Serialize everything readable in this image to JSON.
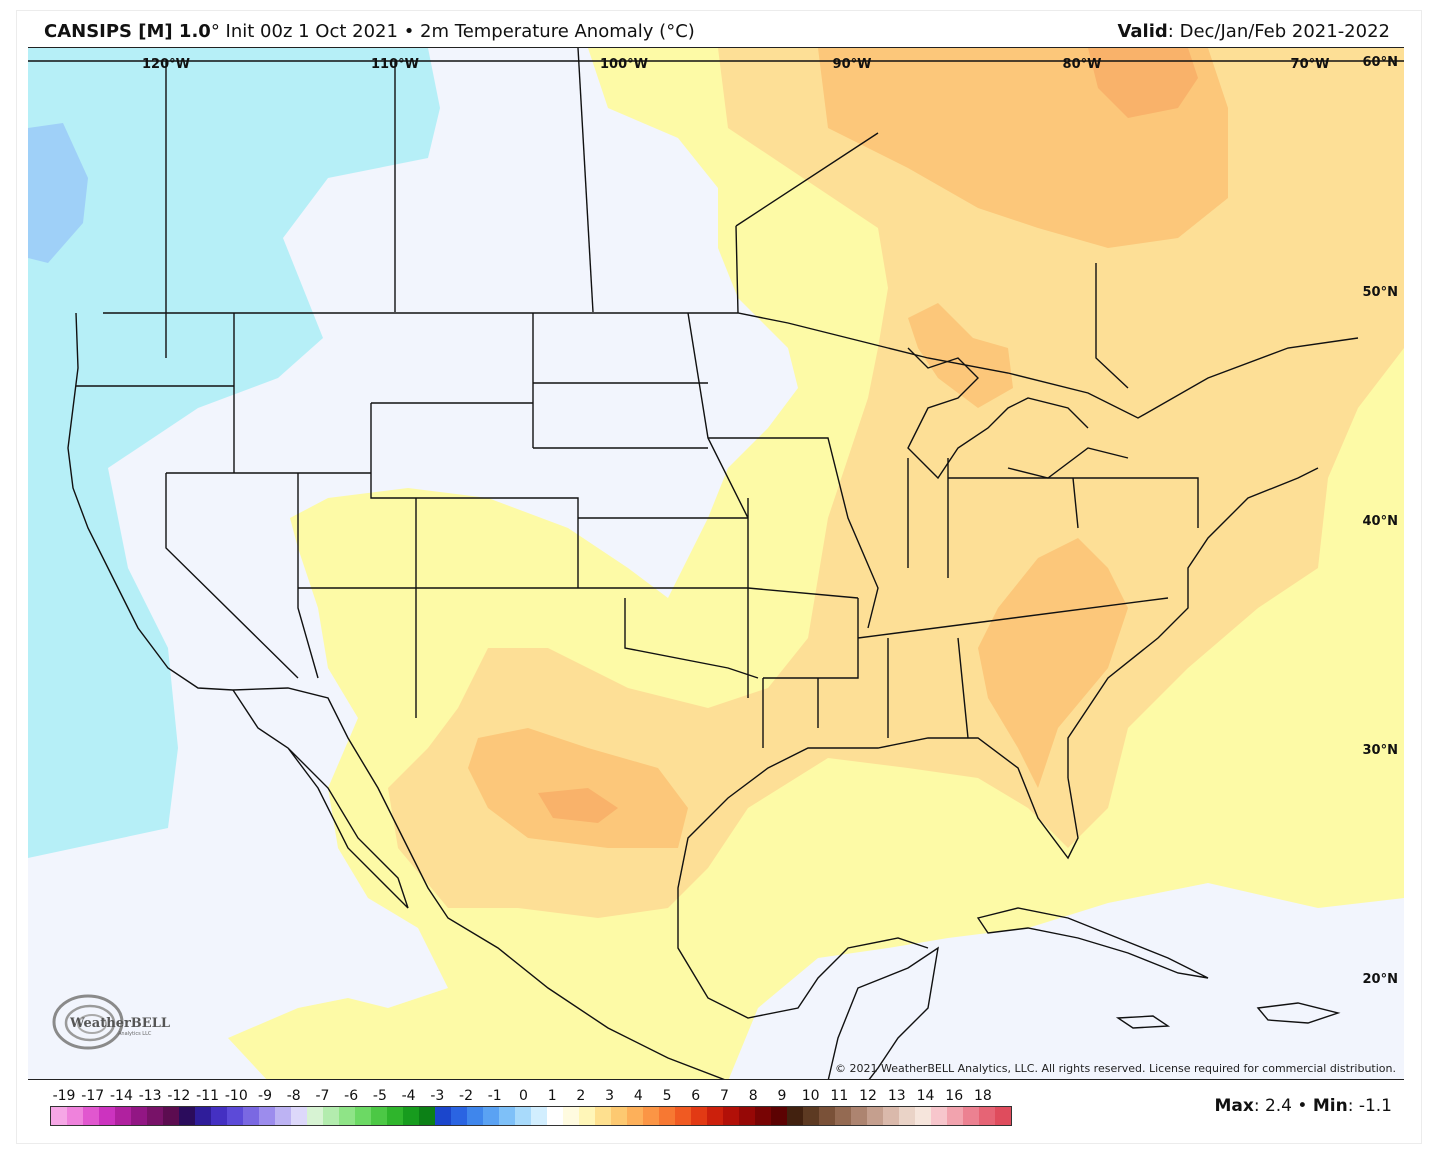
{
  "header": {
    "model": "CANSIPS [M] 1.0",
    "degree": "°",
    "init": "Init 00z 1 Oct 2021",
    "bullet": "•",
    "field": "2m Temperature Anomaly (°C)",
    "valid_label": "Valid",
    "valid_value": ": Dec/Jan/Feb 2021-2022"
  },
  "map": {
    "lon_labels": [
      "120°W",
      "110°W",
      "100°W",
      "90°W",
      "80°W",
      "70°W",
      "60°N"
    ],
    "lat_labels": [
      "50°N",
      "40°N",
      "30°N",
      "20°N"
    ],
    "copyright": "© 2021 WeatherBELL Analytics, LLC. All rights reserved. License required for commercial distribution.",
    "logo_text": "WeatherBELL",
    "logo_sub": "Analytics LLC"
  },
  "colorbar": {
    "labels": [
      "-19",
      "-17",
      "-14",
      "-13",
      "-12",
      "-11",
      "-10",
      "-9",
      "-8",
      "-7",
      "-6",
      "-5",
      "-4",
      "-3",
      "-2",
      "-1",
      "0",
      "1",
      "2",
      "3",
      "4",
      "5",
      "6",
      "7",
      "8",
      "9",
      "10",
      "11",
      "12",
      "13",
      "14",
      "16",
      "18"
    ],
    "colors": [
      "#f6a7e6",
      "#ef82dc",
      "#e157cf",
      "#cc33bf",
      "#b0219f",
      "#921684",
      "#781268",
      "#5c0c50",
      "#2b0c5c",
      "#2f1d9a",
      "#4430c2",
      "#5c4ad8",
      "#7a68e2",
      "#9c8ced",
      "#bdb3f3",
      "#ddd8fa",
      "#d7f3d3",
      "#b3ecae",
      "#8fe487",
      "#6cd964",
      "#4cc845",
      "#2fb52c",
      "#179c1e",
      "#0c8016",
      "#1b46cc",
      "#2a64e2",
      "#3f86ec",
      "#5aa2f3",
      "#7ec0f8",
      "#a8dafb",
      "#d2eefe",
      "#ffffff",
      "#fffbe0",
      "#fff6b8",
      "#fee08f",
      "#fdc971",
      "#fdb05a",
      "#fb9545",
      "#f77832",
      "#f05a22",
      "#e23a14",
      "#cc200c",
      "#b21008",
      "#960806",
      "#780404",
      "#5c0202",
      "#42210f",
      "#5d3a22",
      "#7a5138",
      "#946a52",
      "#ad8470",
      "#c59f8e",
      "#dab9ab",
      "#ead3c7",
      "#f6e5dc",
      "#f7c6cc",
      "#f2a3ae",
      "#ec8191",
      "#e66475",
      "#df4c5d"
    ]
  },
  "stats": {
    "max_label": "Max",
    "max_value": ": 2.4",
    "sep": "•",
    "min_label": "Min",
    "min_value": ": -1.1"
  },
  "palette": {
    "cold_cyan": "#b6eff7",
    "cold_blue": "#9fd0f8",
    "neutral": "#f2f5fd",
    "warm_1": "#fdfaa6",
    "warm_2": "#fddf96",
    "warm_3": "#fcc77a",
    "warm_4": "#f9b26a"
  }
}
